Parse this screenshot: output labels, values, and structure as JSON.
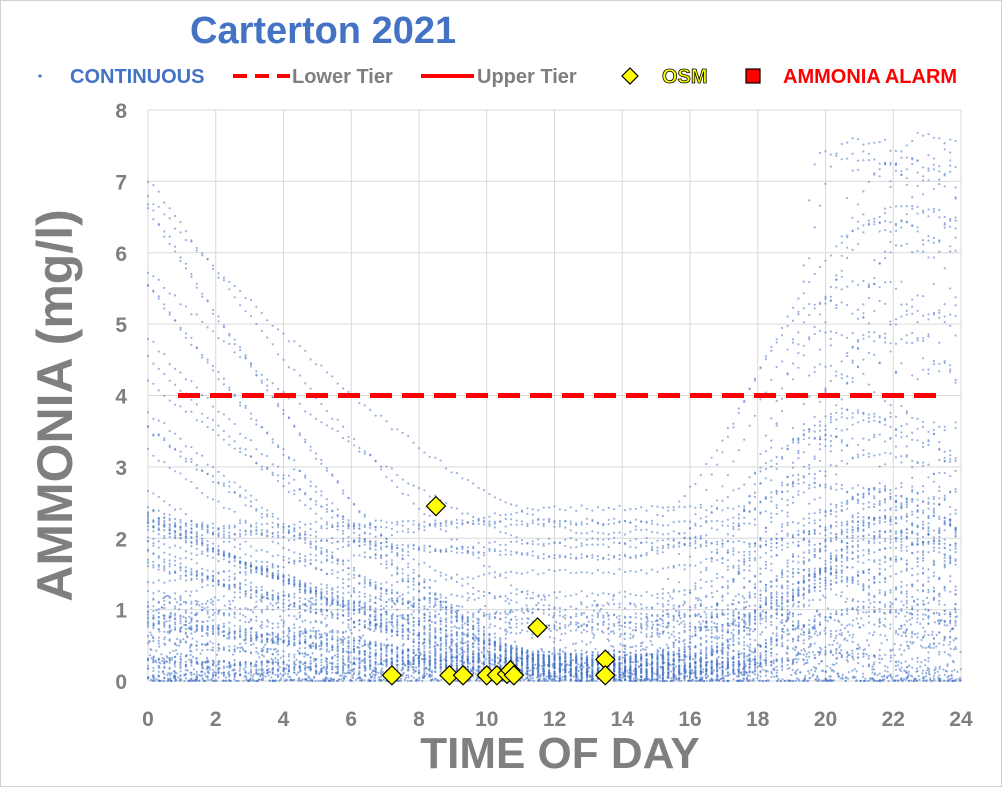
{
  "chart_data": {
    "type": "scatter",
    "title": "Carterton 2021",
    "xlabel": "TIME OF DAY",
    "ylabel": "AMMONIA (mg/l)",
    "xlim": [
      0,
      24
    ],
    "ylim": [
      0,
      8
    ],
    "x_ticks": [
      "0",
      "2",
      "4",
      "6",
      "8",
      "10",
      "12",
      "14",
      "16",
      "18",
      "20",
      "22",
      "24"
    ],
    "y_ticks": [
      "0",
      "1",
      "2",
      "3",
      "4",
      "5",
      "6",
      "7",
      "8"
    ],
    "grid": true,
    "legend_position": "top",
    "legend": [
      {
        "name": "CONTINUOUS",
        "marker": "dot",
        "color": "#4472c4"
      },
      {
        "name": "Lower Tier",
        "marker": "dashed-line",
        "color": "#ff0000"
      },
      {
        "name": "Upper Tier",
        "marker": "solid-line",
        "color": "#ff0000"
      },
      {
        "name": "OSM",
        "marker": "diamond",
        "color": "#ffff00"
      },
      {
        "name": "AMMONIA ALARM",
        "marker": "square",
        "color": "#ff0000"
      }
    ],
    "series": [
      {
        "name": "Lower Tier",
        "style": "dashed",
        "color": "#ff0000",
        "points": [
          [
            0,
            4
          ],
          [
            24,
            4
          ]
        ]
      },
      {
        "name": "OSM",
        "color": "#ffff00",
        "points": [
          [
            7.2,
            0.08
          ],
          [
            8.5,
            2.45
          ],
          [
            8.9,
            0.08
          ],
          [
            9.3,
            0.08
          ],
          [
            10.0,
            0.08
          ],
          [
            10.3,
            0.08
          ],
          [
            10.6,
            0.1
          ],
          [
            10.7,
            0.15
          ],
          [
            10.8,
            0.08
          ],
          [
            11.5,
            0.75
          ],
          [
            13.5,
            0.3
          ],
          [
            13.5,
            0.08
          ]
        ]
      },
      {
        "name": "CONTINUOUS",
        "color": "#4472c4",
        "note_representation": "dense daily diurnal curves approximated by trajectories",
        "points": []
      }
    ]
  }
}
